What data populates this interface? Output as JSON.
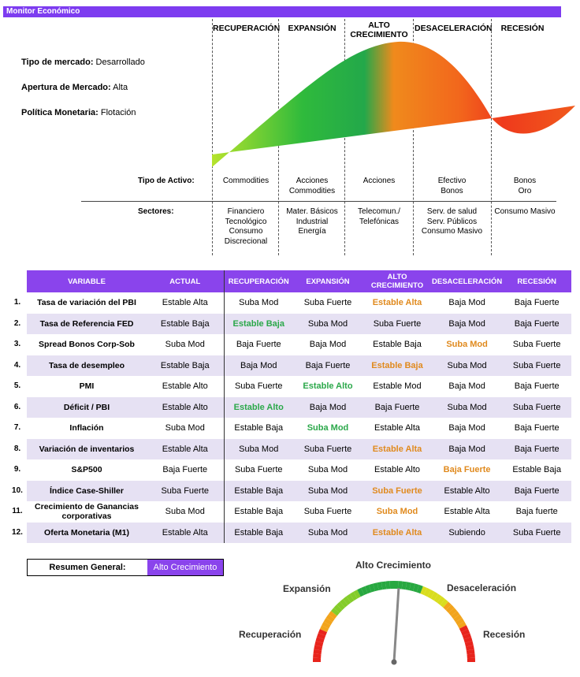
{
  "header": {
    "title": "Monitor Económico"
  },
  "market": {
    "tipo_label": "Tipo de mercado:",
    "tipo_value": "Desarrollado",
    "apertura_label": "Apertura de Mercado:",
    "apertura_value": "Alta",
    "politica_label": "Política Monetaria:",
    "politica_value": "Flotación"
  },
  "phases": [
    "RECUPERACIÓN",
    "EXPANSIÓN",
    "ALTO",
    "CRECIMIENTO",
    "DESACELERACIÓN",
    "RECESIÓN"
  ],
  "asset_label": "Tipo de Activo:",
  "assets": [
    [
      "Commodities"
    ],
    [
      "Acciones",
      "Commodities"
    ],
    [
      "Acciones"
    ],
    [
      "Efectivo",
      "Bonos"
    ],
    [
      "Bonos",
      "Oro"
    ]
  ],
  "sector_label": "Sectores:",
  "sectors": [
    [
      "Financiero",
      "Tecnológico",
      "Consumo",
      "Discrecional"
    ],
    [
      "Mater. Básicos",
      "Industrial",
      "Energía"
    ],
    [
      "Telecomun./",
      "Telefónicas"
    ],
    [
      "Serv. de salud",
      "Serv. Públicos",
      "Consumo Masivo"
    ],
    [
      "Consumo Masivo"
    ]
  ],
  "table": {
    "headers": [
      "VARIABLE",
      "ACTUAL",
      "RECUPERACIÓN",
      "EXPANSIÓN",
      "ALTO CRECIMIENTO",
      "DESACELERACIÓN",
      "RECESIÓN"
    ],
    "rows": [
      {
        "n": "1.",
        "var": "Tasa de variación del PBI",
        "actual": "Estable Alta",
        "vals": [
          "Suba Mod",
          "Suba Fuerte",
          "Estable Alta",
          "Baja Mod",
          "Baja Fuerte"
        ],
        "hl": {
          "idx": 2,
          "color": "orange"
        }
      },
      {
        "n": "2.",
        "var": "Tasa de Referencia FED",
        "actual": "Estable Baja",
        "vals": [
          "Estable Baja",
          "Suba Mod",
          "Suba Fuerte",
          "Baja Mod",
          "Baja Fuerte"
        ],
        "hl": {
          "idx": 0,
          "color": "green"
        }
      },
      {
        "n": "3.",
        "var": "Spread Bonos Corp-Sob",
        "actual": "Suba Mod",
        "vals": [
          "Baja Fuerte",
          "Baja Mod",
          "Estable Baja",
          "Suba Mod",
          "Suba Fuerte"
        ],
        "hl": {
          "idx": 3,
          "color": "orange"
        }
      },
      {
        "n": "4.",
        "var": "Tasa de desempleo",
        "actual": "Estable Baja",
        "vals": [
          "Baja Mod",
          "Baja Fuerte",
          "Estable Baja",
          "Suba Mod",
          "Suba Fuerte"
        ],
        "hl": {
          "idx": 2,
          "color": "orange"
        }
      },
      {
        "n": "5.",
        "var": "PMI",
        "actual": "Estable Alto",
        "vals": [
          "Suba Fuerte",
          "Estable Alto",
          "Estable Mod",
          "Baja Mod",
          "Baja Fuerte"
        ],
        "hl": {
          "idx": 1,
          "color": "green"
        }
      },
      {
        "n": "6.",
        "var": "Déficit / PBI",
        "actual": "Estable Alto",
        "vals": [
          "Estable Alto",
          "Baja Mod",
          "Baja Fuerte",
          "Suba Mod",
          "Suba Fuerte"
        ],
        "hl": {
          "idx": 0,
          "color": "green"
        }
      },
      {
        "n": "7.",
        "var": "Inflación",
        "actual": "Suba Mod",
        "vals": [
          "Estable Baja",
          "Suba Mod",
          "Estable Alta",
          "Baja Mod",
          "Baja Fuerte"
        ],
        "hl": {
          "idx": 1,
          "color": "green"
        }
      },
      {
        "n": "8.",
        "var": "Variación de inventarios",
        "actual": "Estable Alta",
        "vals": [
          "Suba Mod",
          "Suba Fuerte",
          "Estable Alta",
          "Baja Mod",
          "Baja Fuerte"
        ],
        "hl": {
          "idx": 2,
          "color": "orange"
        }
      },
      {
        "n": "9.",
        "var": "S&P500",
        "actual": "Baja Fuerte",
        "vals": [
          "Suba Fuerte",
          "Suba Mod",
          "Estable Alto",
          "Baja Fuerte",
          "Estable Baja"
        ],
        "hl": {
          "idx": 3,
          "color": "orange"
        }
      },
      {
        "n": "10.",
        "var": "Índice Case-Shiller",
        "actual": "Suba Fuerte",
        "vals": [
          "Estable Baja",
          "Suba Mod",
          "Suba Fuerte",
          "Estable Alto",
          "Baja Fuerte"
        ],
        "hl": {
          "idx": 2,
          "color": "orange"
        }
      },
      {
        "n": "11.",
        "var": "Crecimiento de Ganancias corporativas",
        "actual": "Suba Mod",
        "vals": [
          "Estable Baja",
          "Suba Fuerte",
          "Suba Mod",
          "Estable Alta",
          "Baja fuerte"
        ],
        "hl": {
          "idx": 2,
          "color": "orange"
        }
      },
      {
        "n": "12.",
        "var": "Oferta Monetaria (M1)",
        "actual": "Estable Alta",
        "vals": [
          "Estable Baja",
          "Suba Mod",
          "Estable Alta",
          "Subiendo",
          "Suba Fuerte"
        ],
        "hl": {
          "idx": 2,
          "color": "orange"
        }
      }
    ]
  },
  "summary": {
    "label": "Resumen General:",
    "value": "Alto Crecimiento"
  },
  "gauge": {
    "labels": [
      "Recuperación",
      "Expansión",
      "Alto Crecimiento",
      "Desaceleración",
      "Recesión"
    ],
    "needle_fraction": 0.52
  },
  "colors": {
    "accent": "#8a44ec",
    "green": "#2ba84a",
    "orange": "#e08a1e"
  }
}
